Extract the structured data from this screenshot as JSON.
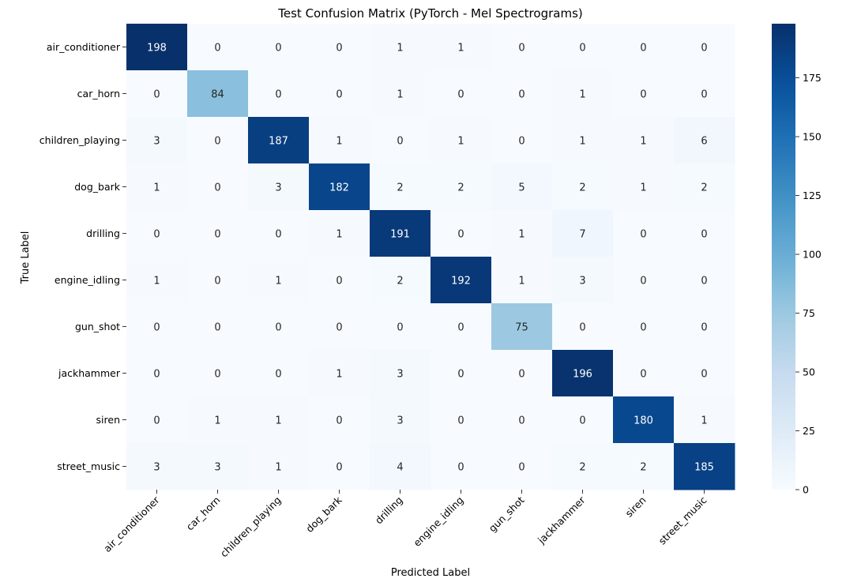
{
  "chart_data": {
    "type": "heatmap",
    "title": "Test Confusion Matrix (PyTorch - Mel Spectrograms)",
    "xlabel": "Predicted Label",
    "ylabel": "True Label",
    "x_categories": [
      "air_conditioner",
      "car_horn",
      "children_playing",
      "dog_bark",
      "drilling",
      "engine_idling",
      "gun_shot",
      "jackhammer",
      "siren",
      "street_music"
    ],
    "y_categories": [
      "air_conditioner",
      "car_horn",
      "children_playing",
      "dog_bark",
      "drilling",
      "engine_idling",
      "gun_shot",
      "jackhammer",
      "siren",
      "street_music"
    ],
    "values": [
      [
        198,
        0,
        0,
        0,
        1,
        1,
        0,
        0,
        0,
        0
      ],
      [
        0,
        84,
        0,
        0,
        1,
        0,
        0,
        1,
        0,
        0
      ],
      [
        3,
        0,
        187,
        1,
        0,
        1,
        0,
        1,
        1,
        6
      ],
      [
        1,
        0,
        3,
        182,
        2,
        2,
        5,
        2,
        1,
        2
      ],
      [
        0,
        0,
        0,
        1,
        191,
        0,
        1,
        7,
        0,
        0
      ],
      [
        1,
        0,
        1,
        0,
        2,
        192,
        1,
        3,
        0,
        0
      ],
      [
        0,
        0,
        0,
        0,
        0,
        0,
        75,
        0,
        0,
        0
      ],
      [
        0,
        0,
        0,
        1,
        3,
        0,
        0,
        196,
        0,
        0
      ],
      [
        0,
        1,
        1,
        0,
        3,
        0,
        0,
        0,
        180,
        1
      ],
      [
        3,
        3,
        1,
        0,
        4,
        0,
        0,
        2,
        2,
        185
      ]
    ],
    "colormap": "Blues",
    "vmin": 0,
    "vmax": 198,
    "colorbar_ticks": [
      0,
      25,
      50,
      75,
      100,
      125,
      150,
      175
    ],
    "annotations": true,
    "grid": false
  }
}
